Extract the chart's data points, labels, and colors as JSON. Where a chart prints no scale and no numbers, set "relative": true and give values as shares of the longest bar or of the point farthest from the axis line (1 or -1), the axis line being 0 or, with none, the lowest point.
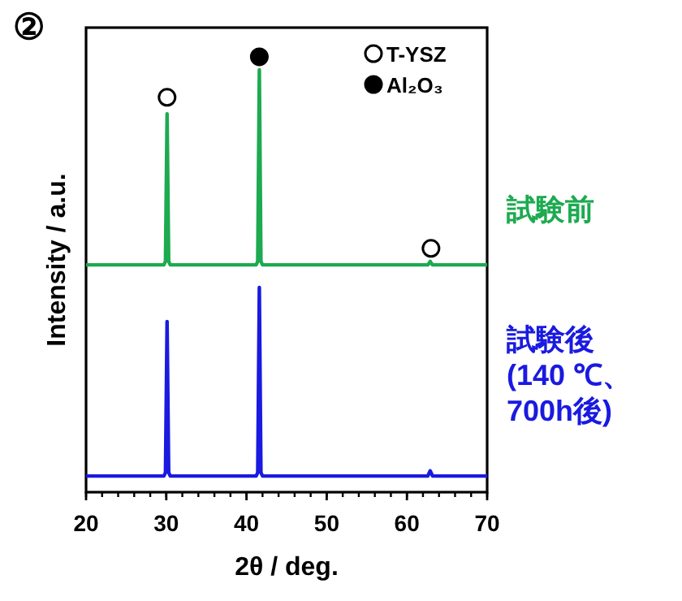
{
  "chart_data": {
    "type": "line",
    "relative": true,
    "xlabel": "2θ / deg.",
    "ylabel": "Intensity  / a.u.",
    "xlim": [
      20,
      70
    ],
    "xticks": [
      20,
      30,
      40,
      50,
      60,
      70
    ],
    "legend": "top right",
    "grid": false,
    "marker": "none",
    "annotations": [
      "②"
    ],
    "series": [
      {
        "name": "試験前",
        "color": "#1daa50",
        "x": [
          20,
          29.7,
          29.9,
          30.1,
          30.3,
          30.5,
          41.2,
          41.4,
          41.6,
          41.8,
          42.0,
          62.6,
          62.9,
          63.2,
          70
        ],
        "values": [
          0.522,
          0.522,
          0.53,
          0.869,
          0.53,
          0.522,
          0.522,
          0.53,
          0.97,
          0.53,
          0.522,
          0.522,
          0.53,
          0.522,
          0.522
        ]
      },
      {
        "name": "試験後\n(140 ℃、\n700h後)",
        "color": "#1a1ae0",
        "x": [
          20,
          29.7,
          29.9,
          30.1,
          30.3,
          30.5,
          41.2,
          41.4,
          41.6,
          41.8,
          42.0,
          62.6,
          62.9,
          63.2,
          70
        ],
        "values": [
          0.037,
          0.037,
          0.045,
          0.392,
          0.045,
          0.037,
          0.037,
          0.045,
          0.47,
          0.045,
          0.037,
          0.037,
          0.049,
          0.037,
          0.037
        ]
      },
      {
        "name": "T-YSZ",
        "type": "scatter",
        "marker": "circle",
        "color": "#ffffff",
        "x": [
          30.1,
          63.0
        ],
        "values": [
          0.907,
          0.56
        ]
      },
      {
        "name": "Al₂O₃",
        "type": "scatter",
        "marker": "circle",
        "color": "#000000",
        "x": [
          41.6
        ],
        "values": [
          1.0
        ]
      }
    ]
  }
}
